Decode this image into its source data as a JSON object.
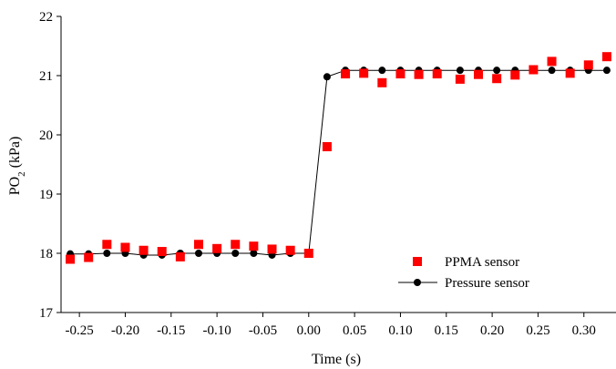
{
  "chart_data": {
    "type": "scatter",
    "xlabel": "Time (s)",
    "ylabel_main": "PO",
    "ylabel_sub": "2",
    "ylabel_unit": " (kPa)",
    "xlim": [
      -0.27,
      0.335
    ],
    "ylim": [
      17,
      22
    ],
    "xticks": [
      -0.25,
      -0.2,
      -0.15,
      -0.1,
      -0.05,
      0.0,
      0.05,
      0.1,
      0.15,
      0.2,
      0.25,
      0.3
    ],
    "xtick_labels": [
      "-0.25",
      "-0.20",
      "-0.15",
      "-0.10",
      "-0.05",
      "0.00",
      "0.05",
      "0.10",
      "0.15",
      "0.20",
      "0.25",
      "0.30"
    ],
    "yticks": [
      17,
      18,
      19,
      20,
      21,
      22
    ],
    "ytick_labels": [
      "17",
      "18",
      "19",
      "20",
      "21",
      "22"
    ],
    "grid": false,
    "legend_position": "bottom-right",
    "series": [
      {
        "name": "PPMA sensor",
        "marker": "square",
        "color": "#ff0000",
        "line": false,
        "x": [
          -0.26,
          -0.24,
          -0.22,
          -0.2,
          -0.18,
          -0.16,
          -0.14,
          -0.12,
          -0.1,
          -0.08,
          -0.06,
          -0.04,
          -0.02,
          0.0,
          0.02,
          0.04,
          0.06,
          0.08,
          0.1,
          0.12,
          0.14,
          0.165,
          0.185,
          0.205,
          0.225,
          0.245,
          0.265,
          0.285,
          0.305,
          0.325
        ],
        "y": [
          17.9,
          17.93,
          18.15,
          18.1,
          18.05,
          18.03,
          17.94,
          18.15,
          18.08,
          18.15,
          18.12,
          18.07,
          18.05,
          18.0,
          19.8,
          21.03,
          21.04,
          20.88,
          21.03,
          21.02,
          21.03,
          20.94,
          21.02,
          20.95,
          21.01,
          21.1,
          21.24,
          21.04,
          21.18,
          21.32
        ]
      },
      {
        "name": "Pressure sensor",
        "marker": "circle",
        "color": "#000000",
        "line": true,
        "x": [
          -0.26,
          -0.24,
          -0.22,
          -0.2,
          -0.18,
          -0.16,
          -0.14,
          -0.12,
          -0.1,
          -0.08,
          -0.06,
          -0.04,
          -0.02,
          0.0,
          0.02,
          0.04,
          0.06,
          0.08,
          0.1,
          0.12,
          0.14,
          0.165,
          0.185,
          0.205,
          0.225,
          0.245,
          0.265,
          0.285,
          0.305,
          0.325
        ],
        "y": [
          17.99,
          17.99,
          18.0,
          18.0,
          17.97,
          17.97,
          18.0,
          18.0,
          18.0,
          18.0,
          18.0,
          17.97,
          18.0,
          18.0,
          20.98,
          21.09,
          21.09,
          21.09,
          21.09,
          21.09,
          21.09,
          21.09,
          21.09,
          21.09,
          21.09,
          21.09,
          21.09,
          21.09,
          21.09,
          21.09
        ]
      }
    ]
  }
}
